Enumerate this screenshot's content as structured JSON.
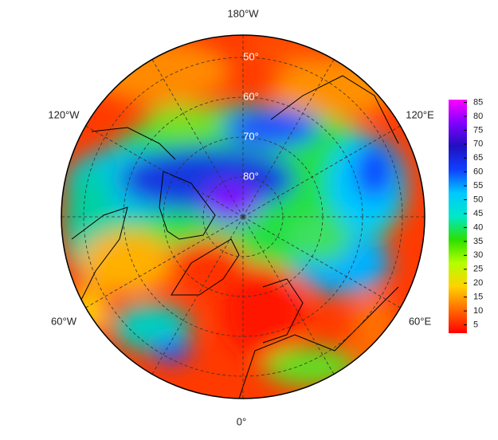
{
  "longitude_labels": {
    "top": "180°W",
    "upper_left": "120°W",
    "upper_right": "120°E",
    "lower_left": "60°W",
    "lower_right": "60°E",
    "bottom": "0°"
  },
  "latitude_labels": [
    "50°",
    "60°",
    "70°",
    "80°"
  ],
  "colorbar": {
    "range": [
      2,
      86
    ],
    "ticks": [
      5,
      10,
      15,
      20,
      25,
      30,
      35,
      40,
      45,
      50,
      55,
      60,
      65,
      70,
      75,
      80,
      85
    ],
    "colors": [
      "#ff0000",
      "#ff6a00",
      "#ffd200",
      "#b4ff00",
      "#2ce000",
      "#00e8c8",
      "#00c8ff",
      "#1040ff",
      "#2010c0",
      "#8000ff",
      "#ff00ff"
    ]
  }
}
